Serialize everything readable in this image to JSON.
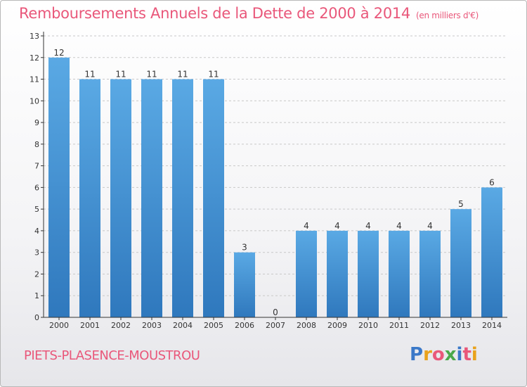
{
  "header": {
    "title": "Remboursements Annuels de la Dette de 2000 à 2014",
    "unit": "(en milliers d'€)"
  },
  "footer": {
    "commune": "PIETS-PLASENCE-MOUSTROU",
    "logo_letters": [
      "P",
      "r",
      "o",
      "x",
      "i",
      "t",
      "i"
    ]
  },
  "colors": {
    "bar_top": "#5aa9e4",
    "bar_bottom": "#2f78bd",
    "title": "#e9577a",
    "grid": "#c8c8c8",
    "axis": "#333333"
  },
  "chart_data": {
    "type": "bar",
    "title": "Remboursements Annuels de la Dette de 2000 à 2014",
    "categories": [
      "2000",
      "2001",
      "2002",
      "2003",
      "2004",
      "2005",
      "2006",
      "2007",
      "2008",
      "2009",
      "2010",
      "2011",
      "2012",
      "2013",
      "2014"
    ],
    "values": [
      12,
      11,
      11,
      11,
      11,
      11,
      3,
      0,
      4,
      4,
      4,
      4,
      4,
      5,
      6
    ],
    "ylim": [
      0,
      13
    ],
    "yticks": [
      0,
      1,
      2,
      3,
      4,
      5,
      6,
      7,
      8,
      9,
      10,
      11,
      12,
      13
    ],
    "grid": true
  }
}
